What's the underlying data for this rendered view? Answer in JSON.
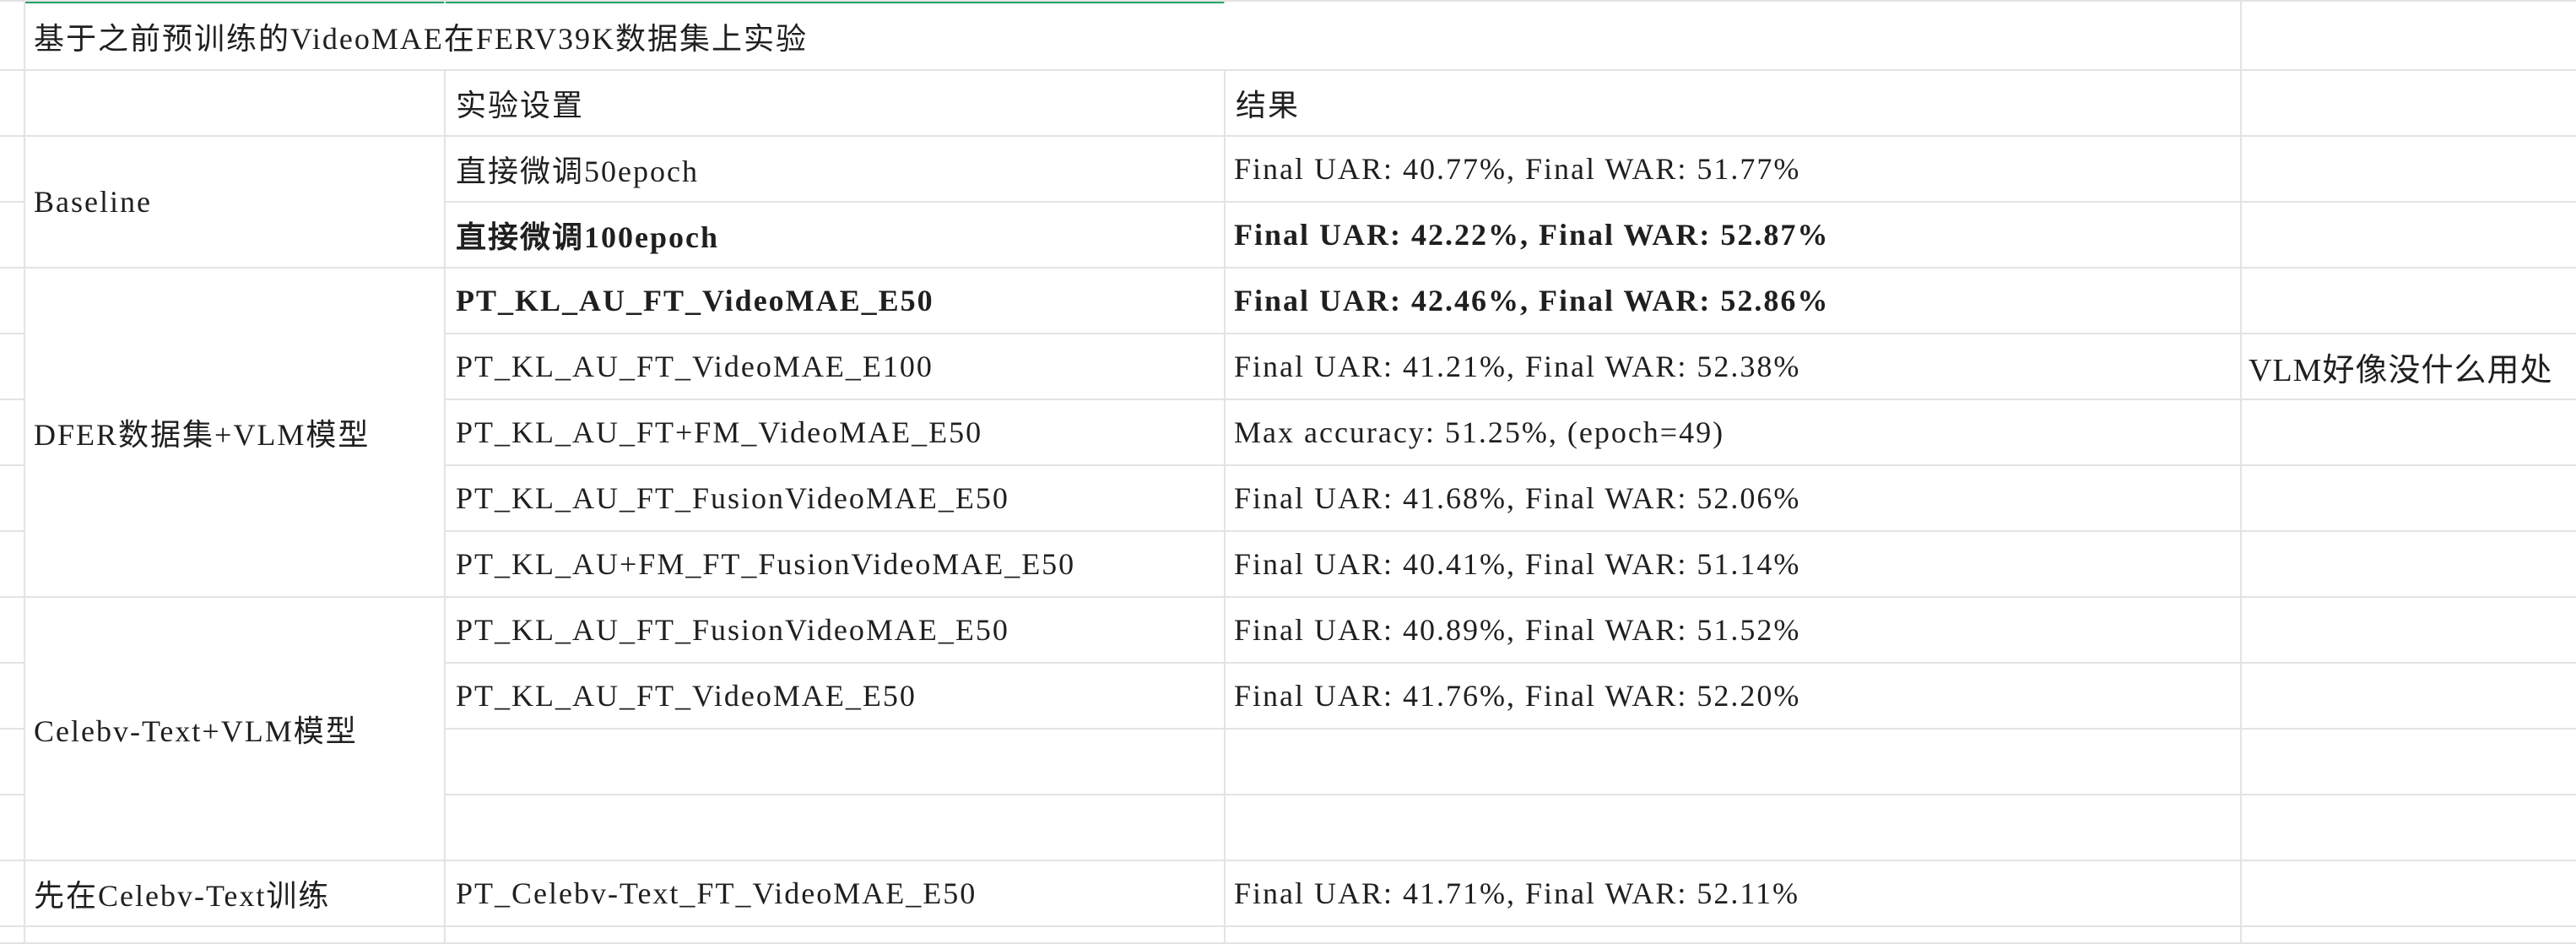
{
  "sheet": {
    "accent_color": "#21a366",
    "grid_color": "#e3e3e3",
    "title": "基于之前预训练的VideoMAE在FERV39K数据集上实验",
    "header": {
      "setting": "实验设置",
      "result": "结果"
    },
    "groups": [
      {
        "label": "Baseline"
      },
      {
        "label": "DFER数据集+VLM模型"
      },
      {
        "label": "Celebv-Text+VLM模型"
      },
      {
        "label": "先在Celebv-Text训练"
      }
    ],
    "rows": [
      {
        "setting": "直接微调50epoch",
        "result": "Final UAR: 40.77%, Final WAR: 51.77%",
        "bold": false
      },
      {
        "setting": "直接微调100epoch",
        "result": "Final UAR: 42.22%, Final WAR: 52.87%",
        "bold": true
      },
      {
        "setting": "PT_KL_AU_FT_VideoMAE_E50",
        "result": "Final UAR: 42.46%, Final WAR: 52.86%",
        "bold": true
      },
      {
        "setting": "PT_KL_AU_FT_VideoMAE_E100",
        "result": "Final UAR: 41.21%, Final WAR: 52.38%",
        "bold": false
      },
      {
        "setting": "PT_KL_AU_FT+FM_VideoMAE_E50",
        "result": "Max accuracy: 51.25%, (epoch=49)",
        "bold": false
      },
      {
        "setting": "PT_KL_AU_FT_FusionVideoMAE_E50",
        "result": "Final UAR: 41.68%, Final WAR: 52.06%",
        "bold": false
      },
      {
        "setting": "PT_KL_AU+FM_FT_FusionVideoMAE_E50",
        "result": "Final UAR: 40.41%, Final WAR: 51.14%",
        "bold": false
      },
      {
        "setting": "PT_KL_AU_FT_FusionVideoMAE_E50",
        "result": "Final UAR: 40.89%, Final WAR: 51.52%",
        "bold": false
      },
      {
        "setting": "PT_KL_AU_FT_VideoMAE_E50",
        "result": "Final UAR: 41.76%, Final WAR: 52.20%",
        "bold": false
      },
      {
        "setting": "",
        "result": "",
        "bold": false
      },
      {
        "setting": "",
        "result": "",
        "bold": false
      },
      {
        "setting": "PT_Celebv-Text_FT_VideoMAE_E50",
        "result": "Final UAR: 41.71%, Final WAR: 52.11%",
        "bold": false
      }
    ],
    "note": "VLM好像没什么用处"
  }
}
